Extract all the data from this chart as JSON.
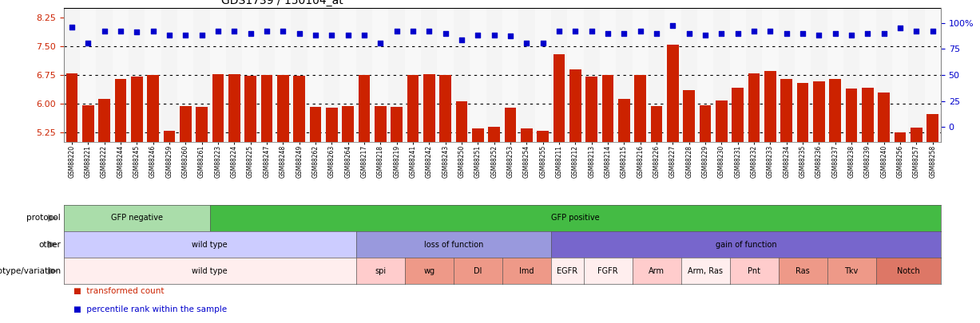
{
  "title": "GDS1739 / 150104_at",
  "samples": [
    "GSM88220",
    "GSM88221",
    "GSM88222",
    "GSM88244",
    "GSM88245",
    "GSM88246",
    "GSM88259",
    "GSM88260",
    "GSM88261",
    "GSM88223",
    "GSM88224",
    "GSM88225",
    "GSM88247",
    "GSM88248",
    "GSM88249",
    "GSM88262",
    "GSM88263",
    "GSM88264",
    "GSM88217",
    "GSM88218",
    "GSM88219",
    "GSM88241",
    "GSM88242",
    "GSM88243",
    "GSM88250",
    "GSM88251",
    "GSM88252",
    "GSM88253",
    "GSM88254",
    "GSM88255",
    "GSM88211",
    "GSM88212",
    "GSM88213",
    "GSM88214",
    "GSM88215",
    "GSM88216",
    "GSM88226",
    "GSM88227",
    "GSM88228",
    "GSM88229",
    "GSM88230",
    "GSM88231",
    "GSM88232",
    "GSM88233",
    "GSM88234",
    "GSM88235",
    "GSM88236",
    "GSM88237",
    "GSM88238",
    "GSM88239",
    "GSM88240",
    "GSM88256",
    "GSM88257",
    "GSM88258"
  ],
  "bar_values": [
    6.8,
    5.96,
    6.13,
    6.65,
    6.7,
    6.75,
    5.28,
    5.93,
    5.92,
    6.76,
    6.76,
    6.73,
    6.75,
    6.75,
    6.72,
    5.92,
    5.9,
    5.93,
    6.75,
    5.94,
    5.91,
    6.75,
    6.76,
    6.75,
    6.05,
    5.35,
    5.4,
    5.9,
    5.35,
    5.28,
    7.3,
    6.9,
    6.7,
    6.75,
    6.12,
    6.75,
    5.93,
    7.55,
    6.35,
    5.95,
    6.08,
    6.42,
    6.8,
    6.85,
    6.65,
    6.53,
    6.58,
    6.65,
    6.4,
    6.42,
    6.3,
    5.25,
    5.38,
    5.72
  ],
  "dot_values": [
    86,
    74,
    83,
    83,
    82,
    83,
    80,
    80,
    80,
    83,
    83,
    81,
    83,
    83,
    81,
    80,
    80,
    80,
    80,
    74,
    83,
    83,
    83,
    81,
    76,
    80,
    80,
    79,
    74,
    74,
    83,
    83,
    83,
    81,
    81,
    83,
    81,
    87,
    81,
    80,
    81,
    81,
    83,
    83,
    81,
    81,
    80,
    81,
    80,
    81,
    81,
    85,
    83,
    83
  ],
  "ylim_left": [
    5.0,
    8.5
  ],
  "yticks_left": [
    5.25,
    6.0,
    6.75,
    7.5,
    8.25
  ],
  "yticks_right": [
    0,
    25,
    50,
    75,
    100
  ],
  "hlines": [
    5.25,
    6.0,
    6.75,
    7.5
  ],
  "bar_color": "#CC2200",
  "dot_color": "#0000CC",
  "protocol_groups": [
    {
      "label": "GFP negative",
      "start": 0,
      "end": 9,
      "color": "#AADDAA"
    },
    {
      "label": "GFP positive",
      "start": 9,
      "end": 54,
      "color": "#44BB44"
    }
  ],
  "other_groups": [
    {
      "label": "wild type",
      "start": 0,
      "end": 18,
      "color": "#CCCCFF"
    },
    {
      "label": "loss of function",
      "start": 18,
      "end": 30,
      "color": "#9999DD"
    },
    {
      "label": "gain of function",
      "start": 30,
      "end": 54,
      "color": "#7766CC"
    }
  ],
  "geno_groups": [
    {
      "label": "wild type",
      "start": 0,
      "end": 18,
      "color": "#FFEEEE"
    },
    {
      "label": "spi",
      "start": 18,
      "end": 21,
      "color": "#FFCCCC"
    },
    {
      "label": "wg",
      "start": 21,
      "end": 24,
      "color": "#EE9988"
    },
    {
      "label": "Dl",
      "start": 24,
      "end": 27,
      "color": "#EE9988"
    },
    {
      "label": "Imd",
      "start": 27,
      "end": 30,
      "color": "#EE9988"
    },
    {
      "label": "EGFR",
      "start": 30,
      "end": 32,
      "color": "#FFEEEE"
    },
    {
      "label": "FGFR",
      "start": 32,
      "end": 35,
      "color": "#FFEEEE"
    },
    {
      "label": "Arm",
      "start": 35,
      "end": 38,
      "color": "#FFCCCC"
    },
    {
      "label": "Arm, Ras",
      "start": 38,
      "end": 41,
      "color": "#FFEEEE"
    },
    {
      "label": "Pnt",
      "start": 41,
      "end": 44,
      "color": "#FFCCCC"
    },
    {
      "label": "Ras",
      "start": 44,
      "end": 47,
      "color": "#EE9988"
    },
    {
      "label": "Tkv",
      "start": 47,
      "end": 50,
      "color": "#EE9988"
    },
    {
      "label": "Notch",
      "start": 50,
      "end": 54,
      "color": "#DD7766"
    }
  ],
  "row_labels": [
    "protocol",
    "other",
    "genotype/variation"
  ]
}
